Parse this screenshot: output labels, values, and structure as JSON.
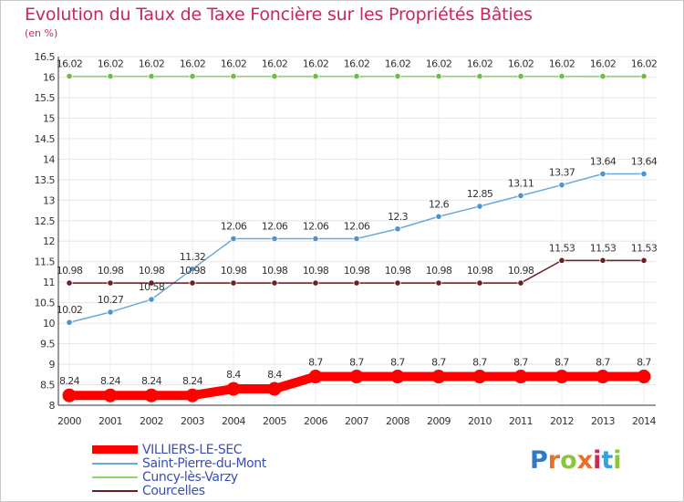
{
  "title": "Evolution du Taux de Taxe Foncière sur les Propriétés Bâties",
  "unit_label": "(en %)",
  "logo": {
    "letters": [
      "P",
      "r",
      "o",
      "x",
      "i",
      "t",
      "i"
    ],
    "colors": [
      "#2e7ac8",
      "#e8702a",
      "#8cc63f",
      "#e8702a",
      "#c8285a",
      "#3aa0d8",
      "#8cc63f"
    ]
  },
  "chart_data": {
    "type": "line",
    "title": "Evolution du Taux de Taxe Foncière sur les Propriétés Bâties",
    "ylabel": "(en %)",
    "xlabel": "",
    "x": [
      "2000",
      "2001",
      "2002",
      "2003",
      "2004",
      "2005",
      "2006",
      "2007",
      "2008",
      "2009",
      "2010",
      "2011",
      "2012",
      "2013",
      "2014"
    ],
    "ylim": [
      8,
      16.5
    ],
    "yticks": [
      8,
      8.5,
      9,
      9.5,
      10,
      10.5,
      11,
      11.5,
      12,
      12.5,
      13,
      13.5,
      14,
      14.5,
      15,
      15.5,
      16,
      16.5
    ],
    "grid": true,
    "legend_position": "bottom",
    "series": [
      {
        "name": "VILLIERS-LE-SEC",
        "color": "#ff0000",
        "marker_color": "#ff0000",
        "emphasis": true,
        "values": [
          8.24,
          8.24,
          8.24,
          8.24,
          8.4,
          8.4,
          8.7,
          8.7,
          8.7,
          8.7,
          8.7,
          8.7,
          8.7,
          8.7,
          8.7
        ],
        "labels": [
          "8.24",
          "8.24",
          "8.24",
          "8.24",
          "8.4",
          "8.4",
          "8.7",
          "8.7",
          "8.7",
          "8.7",
          "8.7",
          "8.7",
          "8.7",
          "8.7",
          "8.7"
        ]
      },
      {
        "name": "Saint-Pierre-du-Mont",
        "color": "#6aa9d8",
        "marker_color": "#4f92cc",
        "emphasis": false,
        "values": [
          10.02,
          10.27,
          10.58,
          11.32,
          12.06,
          12.06,
          12.06,
          12.06,
          12.3,
          12.6,
          12.85,
          13.11,
          13.37,
          13.64,
          13.64
        ],
        "labels": [
          "10.02",
          "10.27",
          "10.58",
          "11.32",
          "12.06",
          "12.06",
          "12.06",
          "12.06",
          "12.3",
          "12.6",
          "12.85",
          "13.11",
          "13.37",
          "13.64",
          "13.64"
        ]
      },
      {
        "name": "Cuncy-lès-Varzy",
        "color": "#8fd46a",
        "marker_color": "#6cbf3c",
        "emphasis": false,
        "values": [
          16.02,
          16.02,
          16.02,
          16.02,
          16.02,
          16.02,
          16.02,
          16.02,
          16.02,
          16.02,
          16.02,
          16.02,
          16.02,
          16.02,
          16.02
        ],
        "labels": [
          "16.02",
          "16.02",
          "16.02",
          "16.02",
          "16.02",
          "16.02",
          "16.02",
          "16.02",
          "16.02",
          "16.02",
          "16.02",
          "16.02",
          "16.02",
          "16.02",
          "16.02"
        ]
      },
      {
        "name": "Courcelles",
        "color": "#6b1f24",
        "marker_color": "#6b1f24",
        "emphasis": false,
        "values": [
          10.98,
          10.98,
          10.98,
          10.98,
          10.98,
          10.98,
          10.98,
          10.98,
          10.98,
          10.98,
          10.98,
          10.98,
          11.53,
          11.53,
          11.53
        ],
        "labels": [
          "10.98",
          "10.98",
          "10.98",
          "10.98",
          "10.98",
          "10.98",
          "10.98",
          "10.98",
          "10.98",
          "10.98",
          "10.98",
          "10.98",
          "11.53",
          "11.53",
          "11.53"
        ]
      }
    ]
  }
}
